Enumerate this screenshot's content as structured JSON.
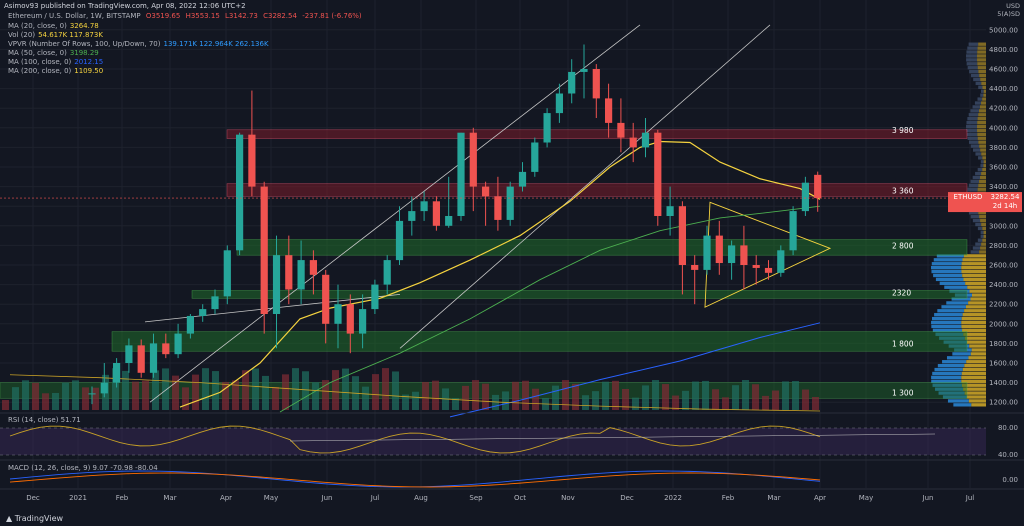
{
  "header": {
    "published": "Asimov93 published on TradingView.com, Apr 08, 2022 12:06 UTC+2",
    "symbol_line": "Ethereum / U.S. Dollar, 1W, BITSTAMP",
    "open": "O3519.65",
    "high": "H3553.15",
    "low": "L3142.73",
    "close": "C3282.54",
    "change": "-237.81 (-6.76%)"
  },
  "indicators": [
    {
      "label": "MA (20, close, 0)",
      "value": "3264.78",
      "color": "#f5d33f"
    },
    {
      "label": "Vol (20)",
      "value": "54.617K  117.873K",
      "color": "#f5d33f"
    },
    {
      "label": "VPVR (Number Of Rows, 100, Up/Down, 70)",
      "value": "139.171K  122.964K  262.136K",
      "color": "#2e9bff"
    },
    {
      "label": "MA (50, close, 0)",
      "value": "3198.29",
      "color": "#4caf50"
    },
    {
      "label": "MA (100, close, 0)",
      "value": "2012.15",
      "color": "#2962ff"
    },
    {
      "label": "MA (200, close, 0)",
      "value": "1109.50",
      "color": "#f5d33f"
    }
  ],
  "usd_label": "USD",
  "scale_label": "5(A)SD",
  "price_tag": {
    "symbol": "ETHUSD",
    "value": "3282.54",
    "countdown": "2d 14h"
  },
  "rsi_label": "RSI (14, close)",
  "rsi_value": "51.71",
  "macd_label": "MACD (12, 26, close, 9)",
  "macd_values": [
    "9.07",
    "-70.98",
    "-80.04"
  ],
  "tv_brand": "TradingView",
  "levels": [
    "3 980",
    "3 360",
    "2 800",
    "2320",
    "1 800",
    "1 300"
  ],
  "chart_data": {
    "type": "candlestick",
    "title": "Ethereum / U.S. Dollar, 1W, BITSTAMP",
    "x_ticks": [
      "Dec",
      "2021",
      "Feb",
      "Mar",
      "Apr",
      "May",
      "Jun",
      "Jul",
      "Aug",
      "Sep",
      "Oct",
      "Nov",
      "Dec",
      "2022",
      "Feb",
      "Mar",
      "Apr",
      "May",
      "Jun",
      "Jul"
    ],
    "y_ticks": [
      1200,
      1400,
      1600,
      1800,
      2000,
      2200,
      2400,
      2600,
      2800,
      3000,
      3200,
      3400,
      3600,
      3800,
      4000,
      4200,
      4400,
      4600,
      4800,
      5000
    ],
    "ylim": [
      1100,
      5100
    ],
    "candles": [
      {
        "o": 1280,
        "h": 1360,
        "c": 1290,
        "l": 1180
      },
      {
        "o": 1290,
        "h": 1600,
        "c": 1400,
        "l": 1250
      },
      {
        "o": 1400,
        "h": 1650,
        "c": 1600,
        "l": 1350
      },
      {
        "o": 1600,
        "h": 1850,
        "c": 1780,
        "l": 1500
      },
      {
        "o": 1780,
        "h": 1840,
        "c": 1500,
        "l": 1450
      },
      {
        "o": 1500,
        "h": 1900,
        "c": 1800,
        "l": 1450
      },
      {
        "o": 1800,
        "h": 1900,
        "c": 1690,
        "l": 1650
      },
      {
        "o": 1690,
        "h": 2000,
        "c": 1900,
        "l": 1650
      },
      {
        "o": 1900,
        "h": 2100,
        "c": 2080,
        "l": 1850
      },
      {
        "o": 2080,
        "h": 2200,
        "c": 2150,
        "l": 2020
      },
      {
        "o": 2150,
        "h": 2350,
        "c": 2280,
        "l": 2100
      },
      {
        "o": 2280,
        "h": 2800,
        "c": 2750,
        "l": 2200
      },
      {
        "o": 2750,
        "h": 3950,
        "c": 3930,
        "l": 2700
      },
      {
        "o": 3930,
        "h": 4380,
        "c": 3400,
        "l": 3300
      },
      {
        "o": 3400,
        "h": 3450,
        "c": 2100,
        "l": 1900
      },
      {
        "o": 2100,
        "h": 2900,
        "c": 2700,
        "l": 1750
      },
      {
        "o": 2700,
        "h": 2900,
        "c": 2350,
        "l": 2200
      },
      {
        "o": 2350,
        "h": 2850,
        "c": 2650,
        "l": 2200
      },
      {
        "o": 2650,
        "h": 2750,
        "c": 2500,
        "l": 2300
      },
      {
        "o": 2500,
        "h": 2550,
        "c": 2000,
        "l": 1800
      },
      {
        "o": 2000,
        "h": 2400,
        "c": 2200,
        "l": 1750
      },
      {
        "o": 2200,
        "h": 2300,
        "c": 1900,
        "l": 1700
      },
      {
        "o": 1900,
        "h": 2300,
        "c": 2150,
        "l": 1750
      },
      {
        "o": 2150,
        "h": 2450,
        "c": 2400,
        "l": 2100
      },
      {
        "o": 2400,
        "h": 2700,
        "c": 2650,
        "l": 2300
      },
      {
        "o": 2650,
        "h": 3200,
        "c": 3050,
        "l": 2600
      },
      {
        "o": 3050,
        "h": 3300,
        "c": 3150,
        "l": 2900
      },
      {
        "o": 3150,
        "h": 3350,
        "c": 3250,
        "l": 3050
      },
      {
        "o": 3250,
        "h": 3300,
        "c": 3000,
        "l": 2950
      },
      {
        "o": 3000,
        "h": 3500,
        "c": 3100,
        "l": 2980
      },
      {
        "o": 3100,
        "h": 3950,
        "c": 3950,
        "l": 3050
      },
      {
        "o": 3950,
        "h": 4000,
        "c": 3400,
        "l": 3150
      },
      {
        "o": 3400,
        "h": 3450,
        "c": 3300,
        "l": 3000
      },
      {
        "o": 3300,
        "h": 3500,
        "c": 3060,
        "l": 2950
      },
      {
        "o": 3060,
        "h": 3450,
        "c": 3400,
        "l": 3000
      },
      {
        "o": 3400,
        "h": 3650,
        "c": 3550,
        "l": 3350
      },
      {
        "o": 3550,
        "h": 3900,
        "c": 3850,
        "l": 3500
      },
      {
        "o": 3850,
        "h": 4200,
        "c": 4150,
        "l": 3800
      },
      {
        "o": 4150,
        "h": 4450,
        "c": 4350,
        "l": 4050
      },
      {
        "o": 4350,
        "h": 4700,
        "c": 4570,
        "l": 4250
      },
      {
        "o": 4570,
        "h": 4850,
        "c": 4600,
        "l": 4300
      },
      {
        "o": 4600,
        "h": 4650,
        "c": 4300,
        "l": 4100
      },
      {
        "o": 4300,
        "h": 4450,
        "c": 4050,
        "l": 3900
      },
      {
        "o": 4050,
        "h": 4300,
        "c": 3900,
        "l": 3750
      },
      {
        "o": 3900,
        "h": 4050,
        "c": 3800,
        "l": 3650
      },
      {
        "o": 3800,
        "h": 4100,
        "c": 3950,
        "l": 3700
      },
      {
        "o": 3950,
        "h": 3980,
        "c": 3100,
        "l": 3000
      },
      {
        "o": 3100,
        "h": 3400,
        "c": 3200,
        "l": 2900
      },
      {
        "o": 3200,
        "h": 3250,
        "c": 2600,
        "l": 2300
      },
      {
        "o": 2600,
        "h": 2700,
        "c": 2550,
        "l": 2200
      },
      {
        "o": 2550,
        "h": 3000,
        "c": 2900,
        "l": 2500
      },
      {
        "o": 2900,
        "h": 3050,
        "c": 2620,
        "l": 2500
      },
      {
        "o": 2620,
        "h": 2850,
        "c": 2800,
        "l": 2450
      },
      {
        "o": 2800,
        "h": 3000,
        "c": 2600,
        "l": 2350
      },
      {
        "o": 2600,
        "h": 2700,
        "c": 2570,
        "l": 2400
      },
      {
        "o": 2570,
        "h": 2650,
        "c": 2520,
        "l": 2450
      },
      {
        "o": 2520,
        "h": 2800,
        "c": 2750,
        "l": 2480
      },
      {
        "o": 2750,
        "h": 3200,
        "c": 3150,
        "l": 2700
      },
      {
        "o": 3150,
        "h": 3500,
        "c": 3440,
        "l": 3100
      },
      {
        "o": 3520,
        "h": 3553,
        "c": 3283,
        "l": 3143
      }
    ]
  }
}
